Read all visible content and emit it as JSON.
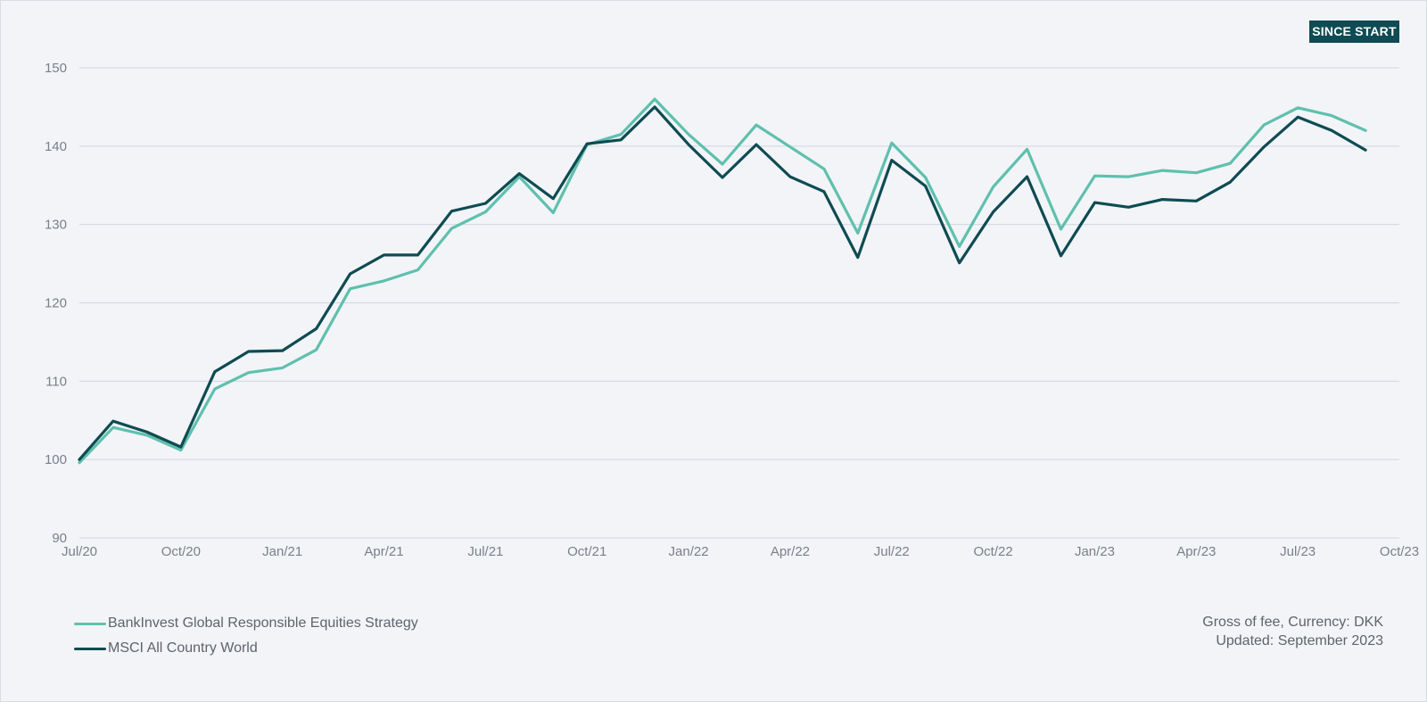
{
  "badge": {
    "label": "SINCE START"
  },
  "footnote": {
    "line1": "Gross of fee, Currency: DKK",
    "line2": "Updated: September 2023"
  },
  "chart_data": {
    "type": "line",
    "title": "",
    "xlabel": "",
    "ylabel": "",
    "ylim": [
      90,
      150
    ],
    "yticks": [
      90,
      100,
      110,
      120,
      130,
      140,
      150
    ],
    "xlim": [
      "2020-07",
      "2023-10"
    ],
    "xticks": [
      "Jul/20",
      "Oct/20",
      "Jan/21",
      "Apr/21",
      "Jul/21",
      "Oct/21",
      "Jan/22",
      "Apr/22",
      "Jul/22",
      "Oct/22",
      "Jan/23",
      "Apr/23",
      "Jul/23",
      "Oct/23"
    ],
    "grid": true,
    "legend_position": "bottom-left",
    "x": [
      "2020-07",
      "2020-08",
      "2020-09",
      "2020-10",
      "2020-11",
      "2020-12",
      "2021-01",
      "2021-02",
      "2021-03",
      "2021-04",
      "2021-05",
      "2021-06",
      "2021-07",
      "2021-08",
      "2021-09",
      "2021-10",
      "2021-11",
      "2021-12",
      "2022-01",
      "2022-02",
      "2022-03",
      "2022-04",
      "2022-05",
      "2022-06",
      "2022-07",
      "2022-08",
      "2022-09",
      "2022-10",
      "2022-11",
      "2022-12",
      "2023-01",
      "2023-02",
      "2023-03",
      "2023-04",
      "2023-05",
      "2023-06",
      "2023-07",
      "2023-08",
      "2023-09"
    ],
    "series": [
      {
        "name": "BankInvest Global Responsible Equities Strategy",
        "color": "#5fc0ad",
        "values": [
          99.6,
          104.1,
          103.1,
          101.2,
          109.0,
          111.1,
          111.7,
          114.0,
          121.8,
          122.8,
          124.2,
          129.5,
          131.6,
          136.1,
          131.5,
          140.2,
          141.5,
          146.0,
          141.5,
          137.7,
          142.7,
          139.9,
          137.1,
          128.9,
          140.4,
          136.0,
          127.2,
          134.8,
          139.6,
          129.4,
          136.2,
          136.1,
          136.9,
          136.6,
          137.8,
          142.7,
          144.9,
          143.9,
          142.0
        ]
      },
      {
        "name": "MSCI All Country World",
        "color": "#0e4b52",
        "values": [
          100.0,
          104.9,
          103.5,
          101.6,
          111.2,
          113.8,
          113.9,
          116.7,
          123.7,
          126.1,
          126.1,
          131.7,
          132.7,
          136.5,
          133.3,
          140.3,
          140.8,
          145.0,
          140.2,
          136.0,
          140.2,
          136.1,
          134.2,
          125.8,
          138.2,
          134.9,
          125.1,
          131.6,
          136.1,
          126.0,
          132.8,
          132.2,
          133.2,
          133.0,
          135.4,
          139.9,
          143.7,
          142.0,
          139.5
        ]
      }
    ]
  }
}
